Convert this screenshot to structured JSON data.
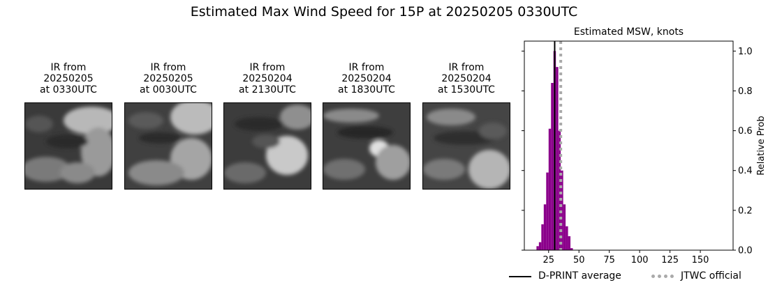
{
  "suptitle": "Estimated Max Wind Speed for 15P at 20250205 0330UTC",
  "panels": [
    {
      "title": "IR from\n20250205\nat 0330UTC"
    },
    {
      "title": "IR from\n20250205\nat 0030UTC"
    },
    {
      "title": "IR from\n20250204\nat 2130UTC"
    },
    {
      "title": "IR from\n20250204\nat 1830UTC"
    },
    {
      "title": "IR from\n20250204\nat 1530UTC"
    }
  ],
  "colors": {
    "histogram": "#8b008b",
    "d_print": "#000000",
    "jtwc": "#aaaaaa"
  },
  "chart_data": {
    "type": "bar",
    "title": "Estimated MSW, knots",
    "xlabel": "",
    "ylabel": "Relative Prob",
    "xlim": [
      5,
      177
    ],
    "ylim": [
      0,
      1.05
    ],
    "xticks": [
      25,
      50,
      75,
      100,
      125,
      150
    ],
    "yticks": [
      0.0,
      0.2,
      0.4,
      0.6,
      0.8,
      1.0
    ],
    "y_axis_side": "right",
    "bin_width": 2,
    "bins": [
      {
        "x": 16,
        "y": 0.02
      },
      {
        "x": 18,
        "y": 0.04
      },
      {
        "x": 20,
        "y": 0.13
      },
      {
        "x": 22,
        "y": 0.23
      },
      {
        "x": 24,
        "y": 0.39
      },
      {
        "x": 26,
        "y": 0.61
      },
      {
        "x": 28,
        "y": 0.84
      },
      {
        "x": 30,
        "y": 1.0
      },
      {
        "x": 32,
        "y": 0.92
      },
      {
        "x": 34,
        "y": 0.6
      },
      {
        "x": 36,
        "y": 0.4
      },
      {
        "x": 38,
        "y": 0.23
      },
      {
        "x": 40,
        "y": 0.12
      },
      {
        "x": 42,
        "y": 0.07
      },
      {
        "x": 44,
        "y": 0.01
      }
    ],
    "d_print_average": 30,
    "jtwc_official": 35,
    "legend": {
      "placement": "bottom",
      "entries": [
        "D-PRINT average",
        "JTWC official"
      ]
    }
  }
}
